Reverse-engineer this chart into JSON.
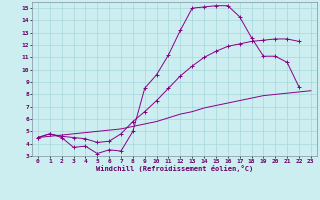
{
  "xlabel": "Windchill (Refroidissement éolien,°C)",
  "bg_color": "#cceef0",
  "grid_color": "#a8d8dc",
  "line_color": "#880088",
  "xlim": [
    -0.5,
    23.5
  ],
  "ylim": [
    3,
    15.5
  ],
  "xticks": [
    0,
    1,
    2,
    3,
    4,
    5,
    6,
    7,
    8,
    9,
    10,
    11,
    12,
    13,
    14,
    15,
    16,
    17,
    18,
    19,
    20,
    21,
    22,
    23
  ],
  "yticks": [
    3,
    4,
    5,
    6,
    7,
    8,
    9,
    10,
    11,
    12,
    13,
    14,
    15
  ],
  "line1_x": [
    0,
    1,
    2,
    3,
    4,
    5,
    6,
    7,
    8,
    9,
    10,
    11,
    12,
    13,
    14,
    15,
    16,
    17,
    18,
    19,
    20,
    21,
    22
  ],
  "line1_y": [
    4.5,
    4.8,
    4.5,
    3.7,
    3.8,
    3.2,
    3.5,
    3.4,
    5.0,
    8.5,
    9.6,
    11.2,
    13.2,
    15.0,
    15.1,
    15.2,
    15.2,
    14.3,
    12.6,
    11.1,
    11.1,
    10.6,
    8.6
  ],
  "line2_x": [
    0,
    1,
    2,
    3,
    4,
    5,
    6,
    7,
    8,
    9,
    10,
    11,
    12,
    13,
    14,
    15,
    16,
    17,
    18,
    19,
    20,
    21,
    22
  ],
  "line2_y": [
    4.5,
    4.8,
    4.6,
    4.5,
    4.4,
    4.1,
    4.2,
    4.8,
    5.8,
    6.6,
    7.5,
    8.5,
    9.5,
    10.3,
    11.0,
    11.5,
    11.9,
    12.1,
    12.3,
    12.4,
    12.5,
    12.5,
    12.3
  ],
  "line3_x": [
    0,
    1,
    2,
    3,
    4,
    5,
    6,
    7,
    8,
    9,
    10,
    11,
    12,
    13,
    14,
    15,
    16,
    17,
    18,
    19,
    20,
    21,
    22,
    23
  ],
  "line3_y": [
    4.5,
    4.6,
    4.7,
    4.8,
    4.9,
    5.0,
    5.1,
    5.2,
    5.4,
    5.6,
    5.8,
    6.1,
    6.4,
    6.6,
    6.9,
    7.1,
    7.3,
    7.5,
    7.7,
    7.9,
    8.0,
    8.1,
    8.2,
    8.3
  ]
}
